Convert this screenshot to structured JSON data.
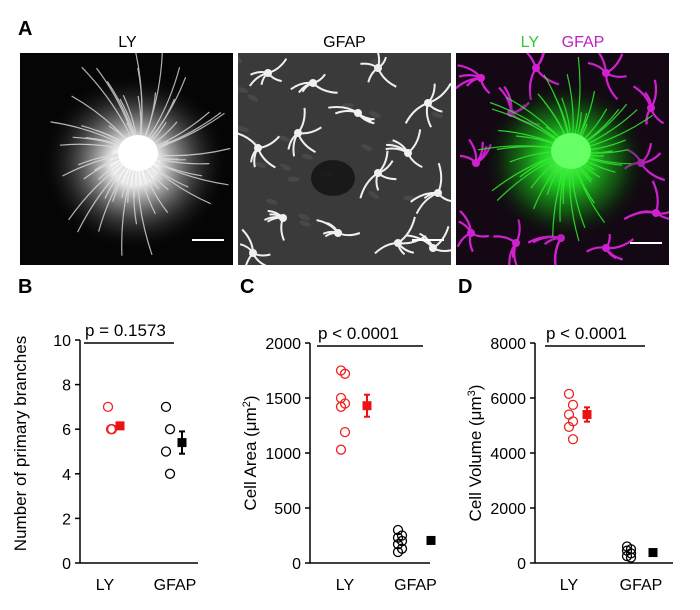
{
  "panelA": {
    "letter": "A",
    "images": [
      {
        "title": "LY"
      },
      {
        "title": "GFAP"
      },
      {
        "title_parts": [
          "LY",
          "GFAP"
        ],
        "colors": [
          "#35c535",
          "#c020c0"
        ]
      }
    ]
  },
  "colors": {
    "ly_open": "#ee2222",
    "ly_mean": "#ee1111",
    "gfap": "#000000",
    "green": "#22dd22",
    "magenta": "#dd22dd"
  },
  "chart_data": [
    {
      "type": "scatter",
      "letter": "B",
      "ylabel": "Number of primary branches",
      "categories": [
        "LY",
        "GFAP"
      ],
      "ylim": [
        0,
        10
      ],
      "yticks": [
        0,
        2,
        4,
        6,
        8,
        10
      ],
      "significance": "p = 0.1573",
      "series": [
        {
          "points": [
            7,
            6,
            6
          ],
          "mean": 6.15,
          "sem": 0.12
        },
        {
          "points": [
            7,
            6,
            5,
            4
          ],
          "mean": 5.4,
          "sem": 0.5
        }
      ]
    },
    {
      "type": "scatter",
      "letter": "C",
      "ylabel_parts": [
        "Cell Area (",
        "μm",
        "2",
        ")"
      ],
      "categories": [
        "LY",
        "GFAP"
      ],
      "ylim": [
        0,
        2000
      ],
      "yticks": [
        0,
        500,
        1000,
        1500,
        2000
      ],
      "significance": "p < 0.0001",
      "series": [
        {
          "points": [
            1750,
            1720,
            1500,
            1450,
            1420,
            1190,
            1030
          ],
          "mean": 1430,
          "sem": 100
        },
        {
          "points": [
            300,
            250,
            230,
            200,
            170,
            130,
            100
          ],
          "mean": 205,
          "sem": 15
        }
      ]
    },
    {
      "type": "scatter",
      "letter": "D",
      "ylabel_parts": [
        "Cell Volume (",
        "μm",
        "3",
        ")"
      ],
      "categories": [
        "LY",
        "GFAP"
      ],
      "ylim": [
        0,
        8000
      ],
      "yticks": [
        0,
        2000,
        4000,
        6000,
        8000
      ],
      "significance": "p < 0.0001",
      "series": [
        {
          "points": [
            6150,
            5750,
            5400,
            5150,
            4950,
            4500
          ],
          "mean": 5400,
          "sem": 260
        },
        {
          "points": [
            600,
            500,
            450,
            350,
            250,
            200
          ],
          "mean": 380,
          "sem": 60
        }
      ]
    }
  ]
}
